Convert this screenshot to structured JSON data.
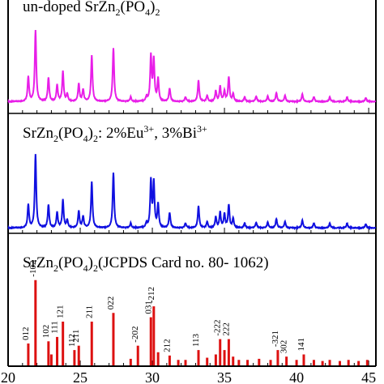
{
  "chart_data": {
    "type": "line",
    "x_range": [
      20,
      45.5
    ],
    "x_ticks": [
      20,
      25,
      30,
      35,
      40,
      45
    ],
    "panels": [
      {
        "title_base": "un-doped SrZn",
        "title_sub1": "2",
        "title_mid": "(PO",
        "title_sub2": "4",
        "title_end": ")",
        "title_sub3": "2",
        "color": "#e81ee8",
        "kind": "line",
        "peaks": [
          {
            "x": 21.4,
            "h": 0.33
          },
          {
            "x": 21.9,
            "h": 0.95
          },
          {
            "x": 22.8,
            "h": 0.32
          },
          {
            "x": 23.4,
            "h": 0.22
          },
          {
            "x": 23.8,
            "h": 0.4
          },
          {
            "x": 24.1,
            "h": 0.1
          },
          {
            "x": 24.9,
            "h": 0.24
          },
          {
            "x": 25.2,
            "h": 0.16
          },
          {
            "x": 25.8,
            "h": 0.62
          },
          {
            "x": 27.3,
            "h": 0.72
          },
          {
            "x": 28.5,
            "h": 0.06
          },
          {
            "x": 29.6,
            "h": 0.06
          },
          {
            "x": 29.9,
            "h": 0.6
          },
          {
            "x": 30.1,
            "h": 0.55
          },
          {
            "x": 30.4,
            "h": 0.3
          },
          {
            "x": 31.2,
            "h": 0.18
          },
          {
            "x": 32.3,
            "h": 0.06
          },
          {
            "x": 33.2,
            "h": 0.28
          },
          {
            "x": 33.8,
            "h": 0.08
          },
          {
            "x": 34.4,
            "h": 0.14
          },
          {
            "x": 34.7,
            "h": 0.2
          },
          {
            "x": 35.0,
            "h": 0.14
          },
          {
            "x": 35.3,
            "h": 0.33
          },
          {
            "x": 35.6,
            "h": 0.1
          },
          {
            "x": 36.4,
            "h": 0.06
          },
          {
            "x": 37.2,
            "h": 0.07
          },
          {
            "x": 38.0,
            "h": 0.07
          },
          {
            "x": 38.6,
            "h": 0.12
          },
          {
            "x": 39.2,
            "h": 0.08
          },
          {
            "x": 40.4,
            "h": 0.1
          },
          {
            "x": 41.2,
            "h": 0.06
          },
          {
            "x": 42.3,
            "h": 0.06
          },
          {
            "x": 43.5,
            "h": 0.06
          },
          {
            "x": 44.8,
            "h": 0.05
          }
        ]
      },
      {
        "title_base": "SrZn",
        "title_sub1": "2",
        "title_mid": "(PO",
        "title_sub2": "4",
        "title_end": ")",
        "title_sub3": "2",
        "title_rest": ": 2%Eu",
        "title_sup1": "3+",
        "title_rest2": ", 3%Bi",
        "title_sup2": "3+",
        "color": "#1010e0",
        "kind": "line",
        "peaks": [
          {
            "x": 21.4,
            "h": 0.3
          },
          {
            "x": 21.9,
            "h": 0.95
          },
          {
            "x": 22.8,
            "h": 0.3
          },
          {
            "x": 23.4,
            "h": 0.2
          },
          {
            "x": 23.8,
            "h": 0.36
          },
          {
            "x": 24.1,
            "h": 0.1
          },
          {
            "x": 24.9,
            "h": 0.22
          },
          {
            "x": 25.2,
            "h": 0.15
          },
          {
            "x": 25.8,
            "h": 0.6
          },
          {
            "x": 27.3,
            "h": 0.72
          },
          {
            "x": 28.5,
            "h": 0.06
          },
          {
            "x": 29.6,
            "h": 0.06
          },
          {
            "x": 29.9,
            "h": 0.6
          },
          {
            "x": 30.1,
            "h": 0.58
          },
          {
            "x": 30.4,
            "h": 0.3
          },
          {
            "x": 31.2,
            "h": 0.2
          },
          {
            "x": 32.3,
            "h": 0.06
          },
          {
            "x": 33.2,
            "h": 0.28
          },
          {
            "x": 33.8,
            "h": 0.08
          },
          {
            "x": 34.4,
            "h": 0.14
          },
          {
            "x": 34.7,
            "h": 0.2
          },
          {
            "x": 35.0,
            "h": 0.18
          },
          {
            "x": 35.3,
            "h": 0.3
          },
          {
            "x": 35.6,
            "h": 0.12
          },
          {
            "x": 36.4,
            "h": 0.06
          },
          {
            "x": 37.2,
            "h": 0.07
          },
          {
            "x": 38.0,
            "h": 0.07
          },
          {
            "x": 38.6,
            "h": 0.12
          },
          {
            "x": 39.2,
            "h": 0.08
          },
          {
            "x": 40.4,
            "h": 0.1
          },
          {
            "x": 41.2,
            "h": 0.06
          },
          {
            "x": 42.3,
            "h": 0.06
          },
          {
            "x": 43.5,
            "h": 0.06
          },
          {
            "x": 44.8,
            "h": 0.05
          }
        ]
      },
      {
        "title_base": "SrZn",
        "title_sub1": "2",
        "title_mid": "(PO",
        "title_sub2": "4",
        "title_end": ")",
        "title_sub3": "2",
        "title_rest": "(JCPDS Card no. 80- 1062)",
        "color": "#dd1111",
        "kind": "stick",
        "peaks": [
          {
            "x": 21.4,
            "h": 0.2,
            "label": "012"
          },
          {
            "x": 21.9,
            "h": 0.78,
            "label": "-102"
          },
          {
            "x": 22.8,
            "h": 0.22,
            "label": "102"
          },
          {
            "x": 23.0,
            "h": 0.1
          },
          {
            "x": 23.4,
            "h": 0.26,
            "label": "111"
          },
          {
            "x": 23.8,
            "h": 0.4,
            "label": "121"
          },
          {
            "x": 24.6,
            "h": 0.14,
            "label": "112"
          },
          {
            "x": 24.9,
            "h": 0.18,
            "label": "211"
          },
          {
            "x": 25.8,
            "h": 0.4,
            "label": "211"
          },
          {
            "x": 27.3,
            "h": 0.48,
            "label": "022"
          },
          {
            "x": 28.5,
            "h": 0.06
          },
          {
            "x": 29.0,
            "h": 0.18,
            "label": "-202"
          },
          {
            "x": 29.9,
            "h": 0.44,
            "label": "031"
          },
          {
            "x": 30.1,
            "h": 0.54,
            "label": "-212"
          },
          {
            "x": 30.4,
            "h": 0.12
          },
          {
            "x": 31.2,
            "h": 0.09,
            "label": "212"
          },
          {
            "x": 31.8,
            "h": 0.05
          },
          {
            "x": 32.3,
            "h": 0.05
          },
          {
            "x": 33.2,
            "h": 0.14,
            "label": "113"
          },
          {
            "x": 33.8,
            "h": 0.07
          },
          {
            "x": 34.4,
            "h": 0.1
          },
          {
            "x": 34.7,
            "h": 0.24,
            "label": "-222"
          },
          {
            "x": 35.0,
            "h": 0.14
          },
          {
            "x": 35.3,
            "h": 0.24,
            "label": "222"
          },
          {
            "x": 35.6,
            "h": 0.08
          },
          {
            "x": 36.0,
            "h": 0.05
          },
          {
            "x": 36.6,
            "h": 0.05
          },
          {
            "x": 37.4,
            "h": 0.06
          },
          {
            "x": 38.2,
            "h": 0.05
          },
          {
            "x": 38.7,
            "h": 0.14,
            "label": "-321"
          },
          {
            "x": 39.3,
            "h": 0.08,
            "label": "302"
          },
          {
            "x": 40.0,
            "h": 0.05
          },
          {
            "x": 40.5,
            "h": 0.1,
            "label": "141"
          },
          {
            "x": 41.2,
            "h": 0.05
          },
          {
            "x": 41.8,
            "h": 0.04
          },
          {
            "x": 42.3,
            "h": 0.05
          },
          {
            "x": 43.0,
            "h": 0.04
          },
          {
            "x": 43.6,
            "h": 0.05
          },
          {
            "x": 44.3,
            "h": 0.04
          },
          {
            "x": 44.9,
            "h": 0.05
          }
        ]
      }
    ]
  }
}
